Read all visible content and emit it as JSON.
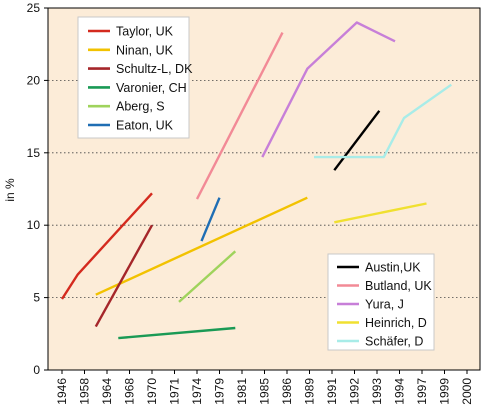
{
  "chart_data": {
    "type": "line",
    "title": "",
    "xlabel": "",
    "ylabel": "in %",
    "x_categories": [
      "1946",
      "1958",
      "1964",
      "1968",
      "1970",
      "1971",
      "1974",
      "1979",
      "1981",
      "1985",
      "1986",
      "1989",
      "1991",
      "1992",
      "1993",
      "1994",
      "1997",
      "1999",
      "2000"
    ],
    "ylim": [
      0,
      25
    ],
    "yticks": [
      0,
      5,
      10,
      15,
      20,
      25
    ],
    "grid": "horizontal dotted",
    "colors": {
      "background": "#fcecd8",
      "plot_border": "#000000"
    },
    "legends": [
      {
        "placement": "top-left",
        "entries": [
          "Taylor, UK",
          "Ninan, UK",
          "Schultz-L, DK",
          "Varonier, CH",
          "Aberg, S",
          "Eaton, UK"
        ]
      },
      {
        "placement": "bottom-right",
        "entries": [
          "Austin,UK",
          "Butland, UK",
          "Yura, J",
          "Heinrich, D",
          "Schäfer, D"
        ]
      }
    ],
    "series": [
      {
        "name": "Taylor, UK",
        "color": "#d42a1e",
        "points": [
          [
            0,
            4.9
          ],
          [
            0.7,
            6.6
          ],
          [
            4,
            12.2
          ]
        ]
      },
      {
        "name": "Ninan, UK",
        "color": "#f2c200",
        "points": [
          [
            1.5,
            5.2
          ],
          [
            10.9,
            11.9
          ]
        ]
      },
      {
        "name": "Schultz-L, DK",
        "color": "#a5262a",
        "points": [
          [
            1.5,
            3.0
          ],
          [
            4,
            10.0
          ]
        ]
      },
      {
        "name": "Varonier, CH",
        "color": "#1a9a55",
        "points": [
          [
            2.5,
            2.2
          ],
          [
            7.7,
            2.9
          ]
        ]
      },
      {
        "name": "Aberg, S",
        "color": "#9fd35c",
        "points": [
          [
            5.2,
            4.7
          ],
          [
            7.7,
            8.2
          ]
        ]
      },
      {
        "name": "Eaton, UK",
        "color": "#1f6eb4",
        "points": [
          [
            6.2,
            8.9
          ],
          [
            7,
            11.9
          ]
        ]
      },
      {
        "name": "Butland, UK",
        "color": "#f28a96",
        "points": [
          [
            6,
            11.8
          ],
          [
            9.8,
            23.3
          ]
        ]
      },
      {
        "name": "Yura, J",
        "color": "#c77fd8",
        "points": [
          [
            8.9,
            14.7
          ],
          [
            10.9,
            20.8
          ],
          [
            13.1,
            24.0
          ],
          [
            14.8,
            22.7
          ]
        ]
      },
      {
        "name": "Austin,UK",
        "color": "#000000",
        "points": [
          [
            12.1,
            13.8
          ],
          [
            14.1,
            17.9
          ]
        ]
      },
      {
        "name": "Heinrich, D",
        "color": "#f0e030",
        "points": [
          [
            12.1,
            10.2
          ],
          [
            16.2,
            11.5
          ]
        ]
      },
      {
        "name": "Schäfer, D",
        "color": "#a8ece8",
        "points": [
          [
            11.2,
            14.7
          ],
          [
            14.3,
            14.7
          ],
          [
            15.2,
            17.4
          ],
          [
            17.3,
            19.7
          ]
        ]
      }
    ]
  }
}
